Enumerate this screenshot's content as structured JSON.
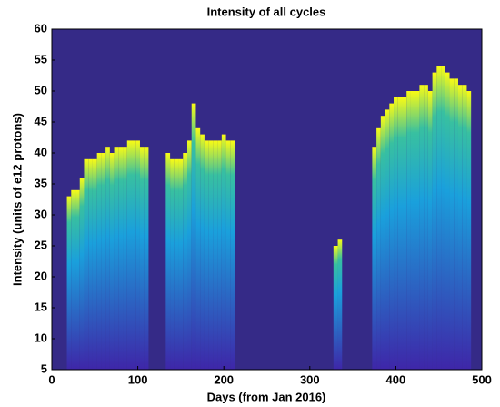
{
  "chart_data": {
    "type": "heatmap",
    "title": "Intensity of all cycles",
    "x_label": "Days (from Jan 2016)",
    "y_label": "Intensity (units of e12 protons)",
    "background_color": "#352a87",
    "colors": [
      "#3e26a8",
      "#1aa0dc",
      "#38c0a0",
      "#f9fb15"
    ],
    "x": [
      20,
      25,
      30,
      35,
      40,
      45,
      50,
      55,
      60,
      65,
      70,
      75,
      80,
      85,
      90,
      95,
      100,
      105,
      110,
      135,
      140,
      145,
      150,
      155,
      160,
      165,
      170,
      175,
      180,
      185,
      190,
      195,
      200,
      205,
      210,
      330,
      335,
      375,
      380,
      385,
      390,
      395,
      400,
      405,
      410,
      415,
      420,
      425,
      430,
      435,
      440,
      445,
      450,
      455,
      460,
      465,
      470,
      475,
      480,
      485
    ],
    "values": [
      33,
      34,
      34,
      36,
      39,
      39,
      39,
      40,
      40,
      41,
      40,
      41,
      41,
      41,
      42,
      42,
      42,
      41,
      41,
      40,
      39,
      39,
      39,
      40,
      42,
      48,
      44,
      43,
      42,
      42,
      42,
      42,
      43,
      42,
      42,
      25,
      26,
      41,
      44,
      46,
      47,
      48,
      49,
      49,
      49,
      50,
      50,
      50,
      51,
      51,
      50,
      53,
      54,
      54,
      53,
      52,
      52,
      51,
      51,
      50
    ],
    "xlim": [
      0,
      500
    ],
    "xticks": [
      0,
      100,
      200,
      300,
      400,
      500
    ],
    "ylim": [
      5,
      60
    ],
    "yticks": [
      5,
      10,
      15,
      20,
      25,
      30,
      35,
      40,
      45,
      50,
      55,
      60
    ]
  }
}
